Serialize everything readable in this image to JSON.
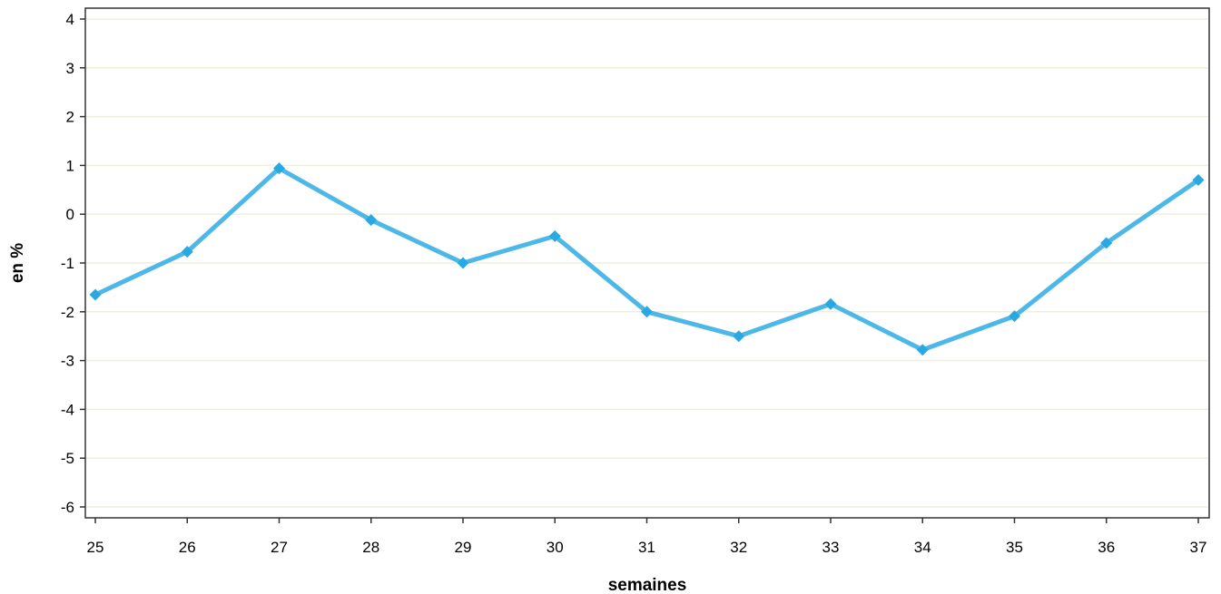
{
  "chart_data": {
    "type": "line",
    "title": "",
    "xlabel": "semaines",
    "ylabel": "en %",
    "x": [
      25,
      26,
      27,
      28,
      29,
      30,
      31,
      32,
      33,
      34,
      35,
      36,
      37
    ],
    "xlim": [
      25,
      37
    ],
    "ylim": [
      -6,
      4
    ],
    "yticks": [
      4,
      3,
      2,
      1,
      0,
      -1,
      -2,
      -3,
      -4,
      -5,
      -6
    ],
    "grid": true,
    "legend": "none",
    "series": [
      {
        "values": [
          -1.65,
          -0.77,
          0.94,
          -0.12,
          -1.0,
          -0.45,
          -2.0,
          -2.5,
          -1.84,
          -2.78,
          -2.09,
          -0.59,
          0.7
        ],
        "color": "#4db8e8",
        "marker": "diamond",
        "marker_color": "#29a9e1"
      }
    ],
    "colors": {
      "grid": "#efefdc",
      "axis": "#333333"
    }
  }
}
